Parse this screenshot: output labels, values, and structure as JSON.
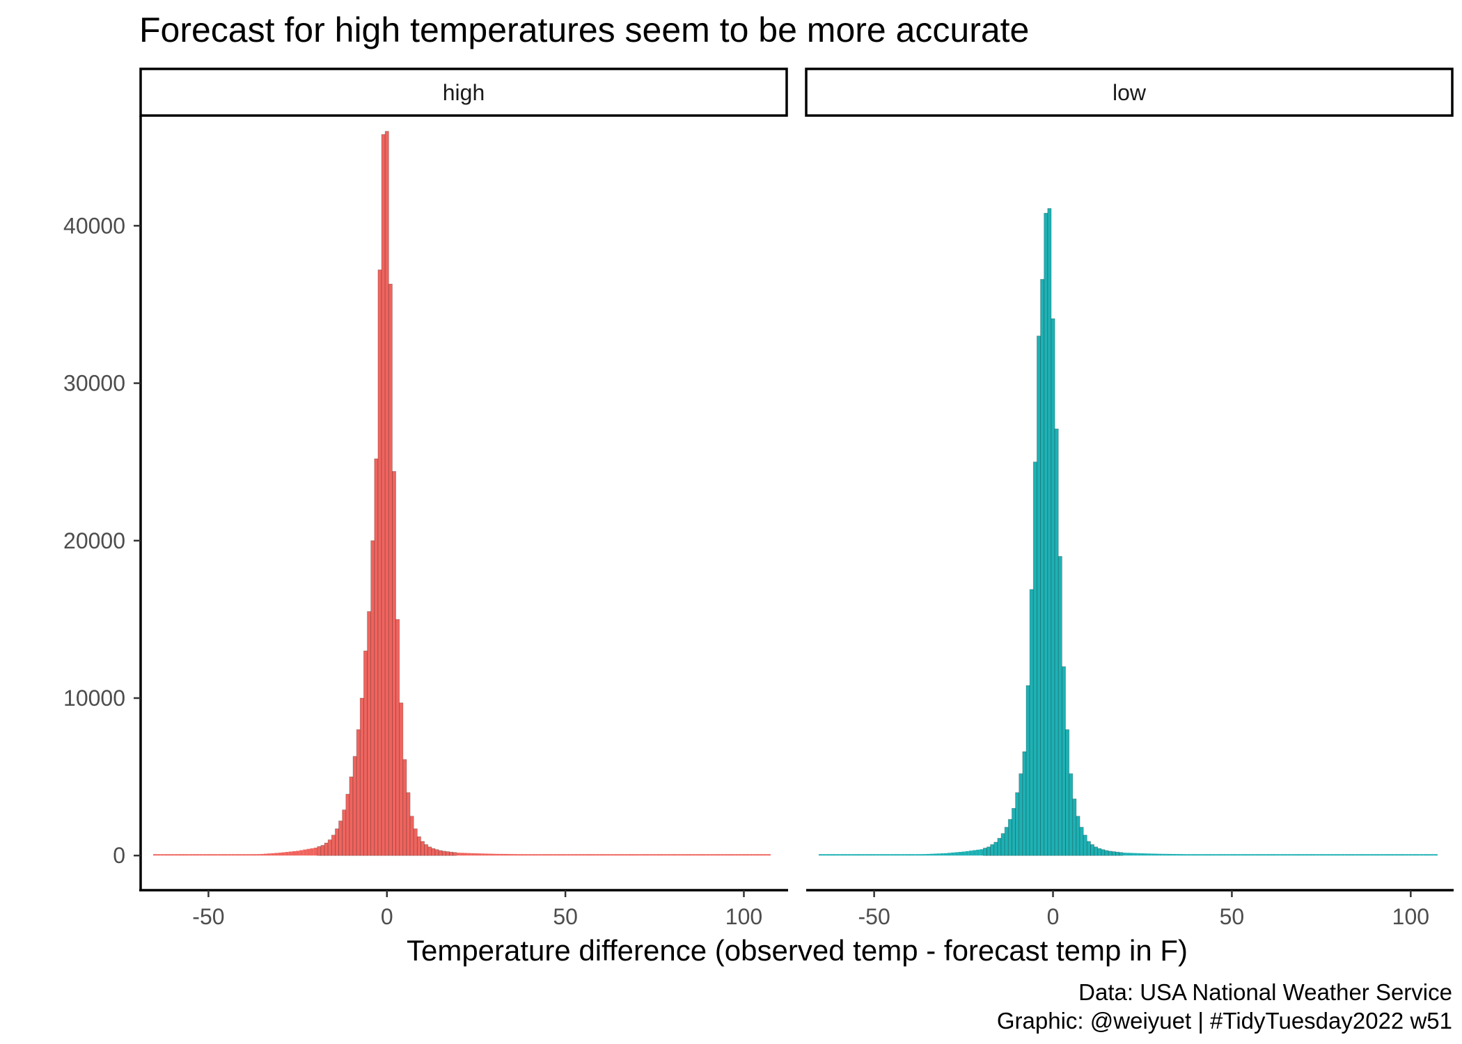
{
  "chart_data": {
    "type": "bar",
    "title": "Forecast for high temperatures seem to be more accurate",
    "xlabel": "Temperature difference (observed temp - forecast temp in F)",
    "ylabel": "",
    "xlim": [
      -69,
      112
    ],
    "ylim": [
      -2200,
      47000
    ],
    "x_ticks": [
      -50,
      0,
      50,
      100
    ],
    "y_ticks": [
      0,
      10000,
      20000,
      30000,
      40000
    ],
    "grid": false,
    "legend": "none",
    "caption": [
      "Data: USA National Weather Service",
      "Graphic: @weiyuet | #TidyTuesday2022 w51"
    ],
    "facets": [
      {
        "name": "high",
        "color": "#F0645E",
        "x": [
          -65,
          -60,
          -55,
          -50,
          -45,
          -40,
          -35,
          -30,
          -25,
          -20,
          -18,
          -17,
          -16,
          -15,
          -14,
          -13,
          -12,
          -11,
          -10,
          -9,
          -8,
          -7,
          -6,
          -5,
          -4,
          -3,
          -2,
          -1,
          0,
          1,
          2,
          3,
          4,
          5,
          6,
          7,
          8,
          9,
          10,
          11,
          12,
          13,
          14,
          15,
          16,
          17,
          18,
          20,
          25,
          30,
          40,
          50,
          60,
          70,
          80,
          90,
          100,
          107
        ],
        "values": [
          20,
          20,
          25,
          30,
          40,
          60,
          100,
          180,
          300,
          500,
          650,
          800,
          1000,
          1300,
          1700,
          2200,
          2900,
          3900,
          5000,
          6300,
          8000,
          10000,
          13000,
          15500,
          20000,
          25200,
          37200,
          45800,
          46000,
          36300,
          24400,
          15000,
          9700,
          6100,
          4000,
          2500,
          1700,
          1200,
          900,
          700,
          550,
          450,
          380,
          320,
          280,
          250,
          220,
          180,
          140,
          110,
          80,
          60,
          50,
          40,
          35,
          30,
          25,
          20
        ]
      },
      {
        "name": "low",
        "color": "#1EB1B4",
        "x": [
          -65,
          -60,
          -55,
          -50,
          -45,
          -40,
          -35,
          -30,
          -25,
          -20,
          -18,
          -17,
          -16,
          -15,
          -14,
          -13,
          -12,
          -11,
          -10,
          -9,
          -8,
          -7,
          -6,
          -5,
          -4,
          -3,
          -2,
          -1,
          0,
          1,
          2,
          3,
          4,
          5,
          6,
          7,
          8,
          9,
          10,
          11,
          12,
          13,
          14,
          15,
          16,
          17,
          18,
          20,
          25,
          30,
          40,
          50,
          60,
          70,
          80,
          90,
          100,
          107
        ],
        "values": [
          20,
          20,
          25,
          30,
          40,
          60,
          100,
          150,
          250,
          400,
          550,
          700,
          850,
          1100,
          1400,
          1800,
          2300,
          3000,
          4000,
          5200,
          6600,
          10800,
          16900,
          25000,
          33000,
          36600,
          40800,
          41100,
          34100,
          27100,
          19000,
          12000,
          8000,
          5200,
          3600,
          2500,
          1800,
          1300,
          900,
          700,
          550,
          450,
          380,
          320,
          280,
          250,
          220,
          180,
          140,
          110,
          80,
          60,
          50,
          40,
          35,
          30,
          25,
          20
        ]
      }
    ]
  }
}
